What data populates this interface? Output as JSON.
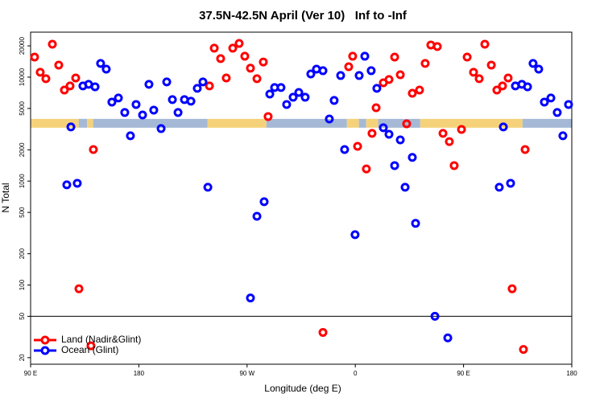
{
  "chart_data": {
    "type": "scatter",
    "title": "37.5N-42.5N April (Ver 10)   Inf to -Inf",
    "x_label": "Longitude (deg E)",
    "y_label": "N Total",
    "log_y": true,
    "legend_position": "lower-left",
    "xlim": [
      90,
      540
    ],
    "ylim": [
      17.3,
      27100
    ],
    "xticks": [
      {
        "value": 90,
        "label": "90 E"
      },
      {
        "value": 180,
        "label": "180"
      },
      {
        "value": 270,
        "label": "90 W"
      },
      {
        "value": 360,
        "label": "0"
      },
      {
        "value": 450,
        "label": "90 E"
      },
      {
        "value": 540,
        "label": "180"
      }
    ],
    "yticks": [
      20,
      50,
      100,
      200,
      500,
      1000,
      2000,
      5000,
      10000,
      20000
    ],
    "hline": 50,
    "band": {
      "level": 3600,
      "segments": [
        {
          "x": [
            90,
            130
          ],
          "color": "#f5d27a"
        },
        {
          "x": [
            130,
            137
          ],
          "color": "#a5b9d6"
        },
        {
          "x": [
            137,
            142
          ],
          "color": "#f5d27a"
        },
        {
          "x": [
            142,
            237
          ],
          "color": "#a5b9d6"
        },
        {
          "x": [
            237,
            286
          ],
          "color": "#f5d27a"
        },
        {
          "x": [
            286,
            353
          ],
          "color": "#a5b9d6"
        },
        {
          "x": [
            353,
            363
          ],
          "color": "#f5d27a"
        },
        {
          "x": [
            363,
            369
          ],
          "color": "#a5b9d6"
        },
        {
          "x": [
            369,
            379
          ],
          "color": "#f5d27a"
        },
        {
          "x": [
            379,
            414
          ],
          "color": "#a5b9d6"
        },
        {
          "x": [
            414,
            499
          ],
          "color": "#f5d27a"
        },
        {
          "x": [
            499,
            540
          ],
          "color": "#a5b9d6"
        }
      ]
    },
    "series": [
      {
        "name": "Land (Nadir&Glint)",
        "color": "#ff0000",
        "x": [
          93.3,
          98.0,
          102.7,
          108.1,
          113.4,
          118.1,
          122.8,
          127.5,
          130.2,
          140.2,
          142.2,
          238.7,
          242.7,
          248.0,
          252.7,
          258.1,
          263.4,
          268.1,
          272.8,
          278.2,
          283.5,
          287.5,
          333.1,
          354.5,
          357.8,
          361.9,
          369.2,
          373.9,
          377.3,
          383.3,
          388.0,
          392.7,
          397.4,
          402.7,
          407.4,
          413.4,
          418.1,
          422.8,
          428.2,
          432.9,
          438.2,
          442.2,
          448.3,
          453.0,
          458.3,
          463.0,
          467.7,
          473.1,
          477.7,
          482.4,
          487.1,
          490.4,
          499.8,
          501.2
        ],
        "y": [
          15600,
          11140,
          9660,
          20750,
          13070,
          7520,
          8230,
          9820,
          92,
          26,
          2010,
          8230,
          19000,
          15100,
          9820,
          19000,
          21100,
          15900,
          12200,
          9660,
          14000,
          4180,
          35,
          12600,
          15900,
          2160,
          1310,
          2880,
          5080,
          8830,
          9490,
          15600,
          10550,
          3560,
          7000,
          7520,
          13550,
          20400,
          19700,
          2880,
          2400,
          1410,
          3140,
          15600,
          11140,
          9660,
          20750,
          13070,
          7520,
          8230,
          9820,
          92,
          24,
          2010
        ]
      },
      {
        "name": "Ocean (Glint)",
        "color": "#0000ff",
        "x": [
          120.1,
          123.5,
          128.8,
          133.5,
          138.2,
          143.6,
          148.2,
          152.9,
          157.6,
          163.0,
          168.3,
          173.0,
          177.7,
          183.1,
          188.4,
          192.4,
          198.5,
          203.2,
          207.9,
          212.6,
          217.9,
          223.3,
          228.6,
          233.3,
          237.4,
          272.8,
          278.2,
          284.2,
          288.9,
          292.9,
          298.2,
          302.9,
          308.3,
          313.0,
          318.3,
          323.0,
          327.7,
          333.1,
          338.4,
          342.4,
          347.8,
          351.1,
          359.8,
          363.2,
          367.9,
          373.2,
          377.9,
          383.3,
          388.0,
          392.7,
          397.4,
          401.4,
          407.4,
          410.1,
          426.2,
          436.9,
          479.7,
          483.1,
          489.1,
          493.1,
          498.5,
          503.2,
          507.8,
          512.5,
          517.2,
          522.6,
          527.9,
          532.6,
          537.3
        ],
        "y": [
          920,
          3320,
          953,
          8230,
          8530,
          8080,
          13550,
          11950,
          5760,
          6300,
          4570,
          2730,
          5460,
          4330,
          8530,
          4820,
          3200,
          9000,
          6080,
          4570,
          6080,
          5870,
          7800,
          9000,
          873,
          75,
          459,
          633,
          6880,
          7940,
          7940,
          5460,
          6410,
          7130,
          6410,
          10740,
          11950,
          11540,
          3960,
          5970,
          10370,
          2010,
          305,
          10370,
          15900,
          11540,
          7800,
          3260,
          2820,
          1410,
          2490,
          873,
          1690,
          392,
          50,
          31,
          873,
          3320,
          953,
          8230,
          8530,
          8080,
          13550,
          11950,
          5760,
          6300,
          4570,
          2730,
          5460
        ]
      }
    ]
  }
}
